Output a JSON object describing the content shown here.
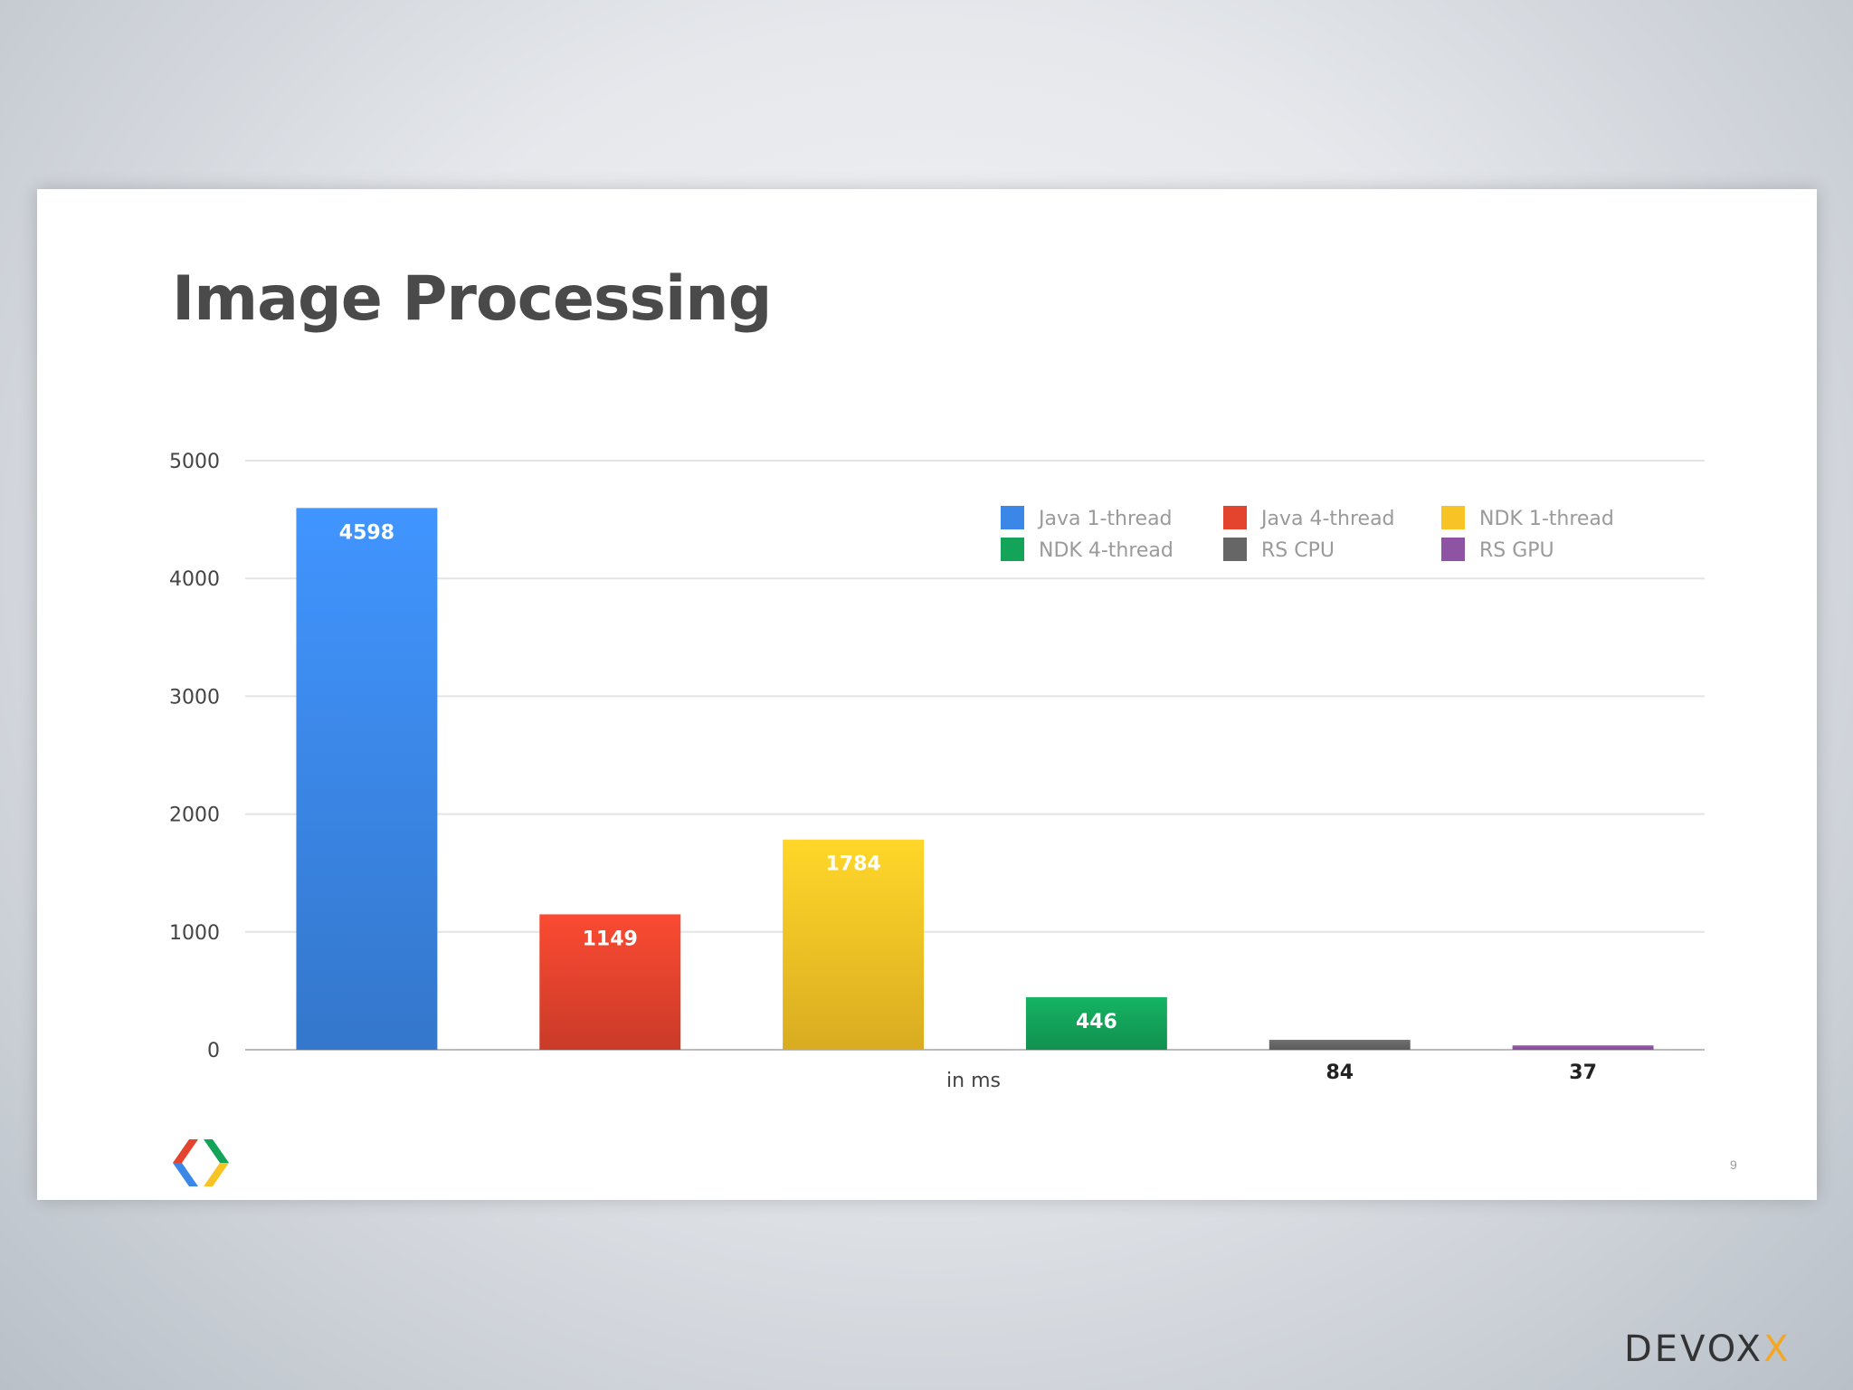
{
  "slide": {
    "title": "Image Processing",
    "page_number": "9"
  },
  "footer": {
    "brand": "DEVOX",
    "brand_accent": "X",
    "logo_icon": "google-developers-chevron-icon"
  },
  "chart_data": {
    "type": "bar",
    "title": "",
    "xlabel": "in ms",
    "ylabel": "",
    "ylim": [
      0,
      5000
    ],
    "yticks": [
      0,
      1000,
      2000,
      3000,
      4000,
      5000
    ],
    "grid": true,
    "legend_position": "top-right",
    "series": [
      {
        "name": "Java 1-thread",
        "value": 4598,
        "color": "#3b87e8"
      },
      {
        "name": "Java 4-thread",
        "value": 1149,
        "color": "#e4432d"
      },
      {
        "name": "NDK 1-thread",
        "value": 1784,
        "color": "#f7c325"
      },
      {
        "name": "NDK 4-thread",
        "value": 446,
        "color": "#13a45a"
      },
      {
        "name": "RS CPU",
        "value": 84,
        "color": "#666666"
      },
      {
        "name": "RS GPU",
        "value": 37,
        "color": "#8e54a3"
      }
    ]
  }
}
